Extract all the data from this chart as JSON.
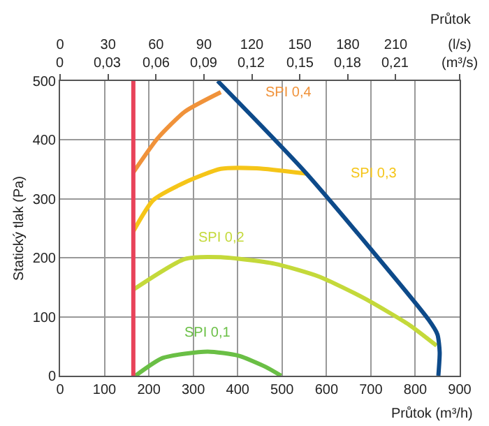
{
  "chart_data": {
    "type": "line",
    "xlabel": "Průtok (m³/h)",
    "ylabel": "Statický tlak (Pa)",
    "x2label": "Průtok",
    "xlim": [
      0,
      900
    ],
    "xticks": [
      0,
      100,
      200,
      300,
      400,
      500,
      600,
      700,
      800,
      900
    ],
    "ylim": [
      0,
      500
    ],
    "yticks": [
      0,
      100,
      200,
      300,
      400,
      500
    ],
    "x2lim": [
      0,
      250
    ],
    "x2ticks": [
      0,
      30,
      60,
      90,
      120,
      150,
      180,
      210,
      {
        "value": 250,
        "label": "(l/s)"
      }
    ],
    "annotations": [
      "0",
      "0,03",
      "0,06",
      "0,09",
      "0,12",
      "0,15",
      "0,18",
      "0,21",
      "(m³/s)"
    ],
    "grid": true,
    "legend": false,
    "marker": "none",
    "line_style": "solid",
    "series": [
      {
        "name": "SPI 0,4",
        "color": "#f0923a",
        "x": [
          165,
          220,
          281,
          362
        ],
        "values": [
          345,
          403,
          448,
          481
        ]
      },
      {
        "name": "SPI 0,3",
        "color": "#f5c518",
        "x": [
          165,
          210,
          281,
          362,
          443,
          554
        ],
        "values": [
          245,
          298,
          328,
          351,
          352,
          343
        ]
      },
      {
        "name": "SPI 0,2",
        "color": "#c4d93a",
        "x": [
          165,
          281,
          362,
          483,
          584,
          686,
          787,
          848
        ],
        "values": [
          146,
          198,
          201,
          190,
          168,
          131,
          86,
          51
        ]
      },
      {
        "name": "SPI 0,1",
        "color": "#6abf45",
        "x": [
          170,
          231,
          332,
          402,
          463,
          498
        ],
        "values": [
          0,
          30,
          41,
          34,
          15,
          0
        ]
      },
      {
        "color": "#e8435a",
        "x": [
          165,
          165
        ],
        "values": [
          0,
          500
        ]
      },
      {
        "color": "#0d4a8a",
        "x": [
          355,
          555,
          830,
          850,
          855,
          852
        ],
        "values": [
          500,
          343,
          95,
          70,
          40,
          0
        ]
      }
    ]
  }
}
